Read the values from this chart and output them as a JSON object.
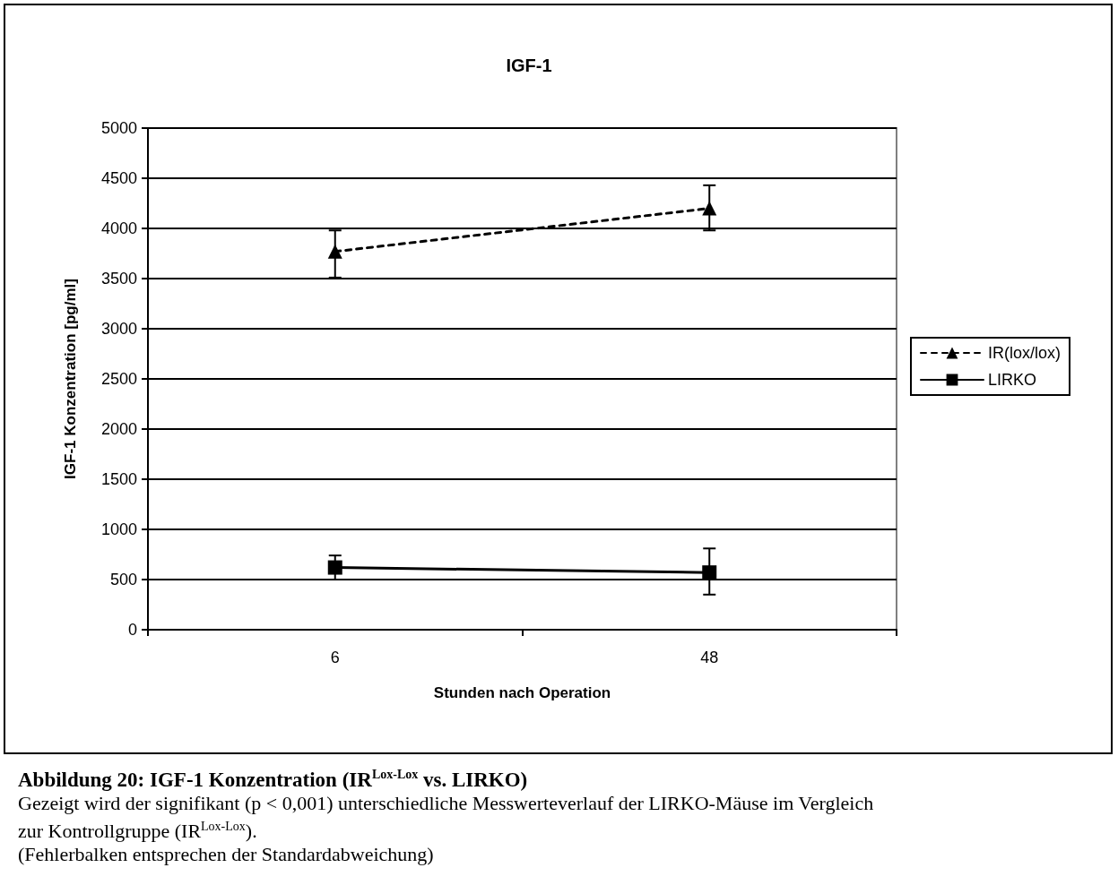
{
  "chart_data": {
    "type": "line",
    "title": "IGF-1",
    "xlabel": "Stunden nach Operation",
    "ylabel": "IGF-1 Konzentration [pg/ml]",
    "categories": [
      "6",
      "48"
    ],
    "series": [
      {
        "name": "IR(lox/lox)",
        "color": "#000000",
        "marker": "triangle",
        "line_style": "dashed",
        "values": [
          3770,
          4200
        ],
        "errors": [
          [
            3510,
            3980
          ],
          [
            3980,
            4430
          ]
        ]
      },
      {
        "name": "LIRKO",
        "color": "#000000",
        "marker": "square",
        "line_style": "solid",
        "values": [
          620,
          570
        ],
        "errors": [
          [
            500,
            740
          ],
          [
            350,
            810
          ]
        ]
      }
    ],
    "ylim": [
      0,
      5000
    ],
    "yticks": [
      0,
      500,
      1000,
      1500,
      2000,
      2500,
      3000,
      3500,
      4000,
      4500,
      5000
    ],
    "grid": "y",
    "legend": "right",
    "annotations": [
      "Abbildung 20: IGF-1 Konzentration (IR$^{Lox-Lox}$ vs. LIRKO)",
      "Gezeigt wird der signifikant (p < 0,001) unterschiedliche Messwerteverlauf der LIRKO-Mäuse im Vergleich zur Kontrollgruppe (IR$^{Lox-Lox}$).",
      "(Fehlerbalken entsprechen der Standardabweichung)"
    ]
  }
}
